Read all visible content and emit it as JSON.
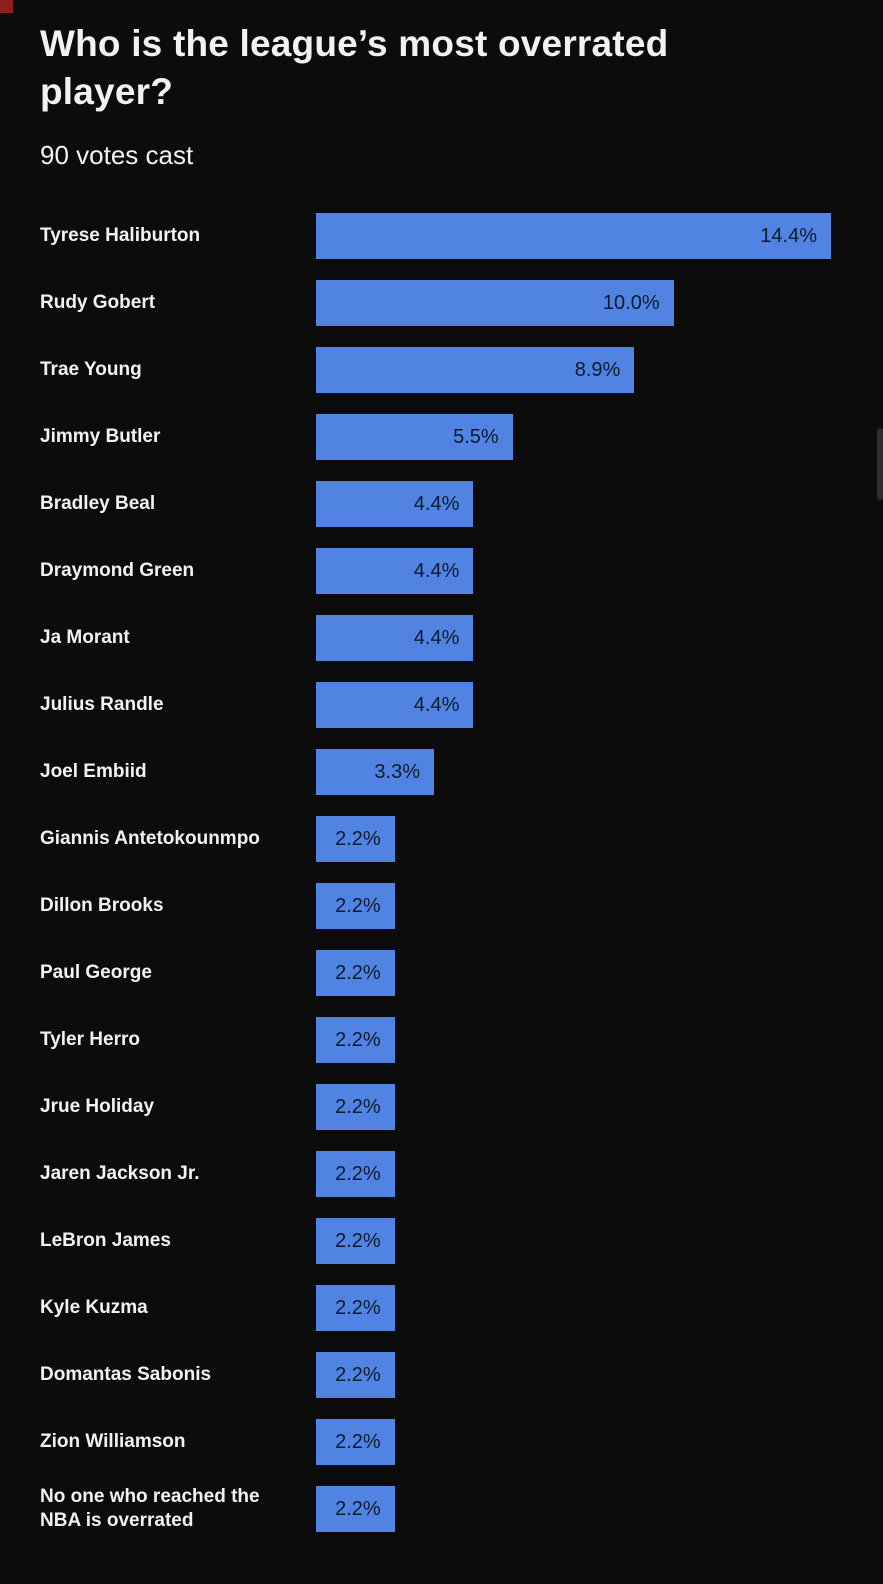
{
  "page": {
    "title": "Who is the league’s most overrated player?",
    "subtitle": "90 votes cast"
  },
  "colors": {
    "background": "#0c0c0c",
    "bar": "#5183e2",
    "bar_label": "#0d1a2e",
    "text": "#f2f2f2"
  },
  "chart_data": {
    "type": "bar",
    "orientation": "horizontal",
    "title": "Who is the league’s most overrated player?",
    "subtitle": "90 votes cast",
    "value_suffix": "%",
    "axis_max": 14.4,
    "grid": false,
    "legend": "none",
    "categories": [
      "Tyrese Haliburton",
      "Rudy Gobert",
      "Trae Young",
      "Jimmy Butler",
      "Bradley Beal",
      "Draymond Green",
      "Ja Morant",
      "Julius Randle",
      "Joel Embiid",
      "Giannis Antetokounmpo",
      "Dillon Brooks",
      "Paul George",
      "Tyler Herro",
      "Jrue Holiday",
      "Jaren Jackson Jr.",
      "LeBron James",
      "Kyle Kuzma",
      "Domantas Sabonis",
      "Zion Williamson",
      "No one who reached the NBA is overrated"
    ],
    "values": [
      14.4,
      10.0,
      8.9,
      5.5,
      4.4,
      4.4,
      4.4,
      4.4,
      3.3,
      2.2,
      2.2,
      2.2,
      2.2,
      2.2,
      2.2,
      2.2,
      2.2,
      2.2,
      2.2,
      2.2
    ],
    "labels": [
      "14.4%",
      "10.0%",
      "8.9%",
      "5.5%",
      "4.4%",
      "4.4%",
      "4.4%",
      "4.4%",
      "3.3%",
      "2.2%",
      "2.2%",
      "2.2%",
      "2.2%",
      "2.2%",
      "2.2%",
      "2.2%",
      "2.2%",
      "2.2%",
      "2.2%",
      "2.2%"
    ]
  }
}
